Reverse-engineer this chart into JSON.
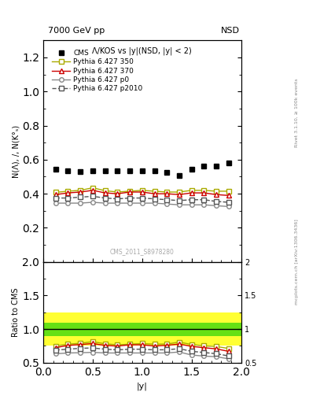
{
  "title_top": "7000 GeV pp",
  "title_top_right": "NSD",
  "plot_title": "Λ/KOS vs |y|(NSD, |y| < 2)",
  "xlabel": "|y|",
  "ylabel_main": "N(Λ), /, N(K°ₛ)",
  "ylabel_ratio": "Ratio to CMS",
  "watermark": "CMS_2011_S8978280",
  "right_label_top": "Rivet 3.1.10, ≥ 100k events",
  "right_label_bottom": "mcplots.cern.ch [arXiv:1306.3436]",
  "cms_x": [
    0.125,
    0.25,
    0.375,
    0.5,
    0.625,
    0.75,
    0.875,
    1.0,
    1.125,
    1.25,
    1.375,
    1.5,
    1.625,
    1.75,
    1.875
  ],
  "cms_y": [
    0.545,
    0.535,
    0.532,
    0.535,
    0.535,
    0.535,
    0.535,
    0.535,
    0.535,
    0.527,
    0.508,
    0.545,
    0.56,
    0.56,
    0.583
  ],
  "p350_x": [
    0.125,
    0.25,
    0.375,
    0.5,
    0.625,
    0.75,
    0.875,
    1.0,
    1.125,
    1.25,
    1.375,
    1.5,
    1.625,
    1.75,
    1.875
  ],
  "p350_y": [
    0.408,
    0.415,
    0.42,
    0.435,
    0.418,
    0.41,
    0.415,
    0.42,
    0.415,
    0.41,
    0.41,
    0.42,
    0.42,
    0.415,
    0.415
  ],
  "p370_x": [
    0.125,
    0.25,
    0.375,
    0.5,
    0.625,
    0.75,
    0.875,
    1.0,
    1.125,
    1.25,
    1.375,
    1.5,
    1.625,
    1.75,
    1.875
  ],
  "p370_y": [
    0.395,
    0.405,
    0.41,
    0.42,
    0.405,
    0.4,
    0.41,
    0.41,
    0.4,
    0.4,
    0.395,
    0.405,
    0.405,
    0.395,
    0.39
  ],
  "pp0_x": [
    0.125,
    0.25,
    0.375,
    0.5,
    0.625,
    0.75,
    0.875,
    1.0,
    1.125,
    1.25,
    1.375,
    1.5,
    1.625,
    1.75,
    1.875
  ],
  "pp0_y": [
    0.345,
    0.345,
    0.345,
    0.35,
    0.345,
    0.345,
    0.345,
    0.345,
    0.345,
    0.34,
    0.335,
    0.335,
    0.335,
    0.33,
    0.325
  ],
  "pp2010_x": [
    0.125,
    0.25,
    0.375,
    0.5,
    0.625,
    0.75,
    0.875,
    1.0,
    1.125,
    1.25,
    1.375,
    1.5,
    1.625,
    1.75,
    1.875
  ],
  "pp2010_y": [
    0.375,
    0.375,
    0.38,
    0.385,
    0.375,
    0.37,
    0.375,
    0.375,
    0.37,
    0.365,
    0.36,
    0.365,
    0.365,
    0.355,
    0.35
  ],
  "color_350": "#aaaa00",
  "color_370": "#cc0000",
  "color_p0": "#888888",
  "color_p2010": "#555555",
  "band_yellow_lo": 0.75,
  "band_yellow_hi": 1.25,
  "band_green_lo": 0.9,
  "band_green_hi": 1.1,
  "ylim_main": [
    0.0,
    1.3
  ],
  "ylim_ratio": [
    0.5,
    2.0
  ],
  "xlim": [
    0.0,
    2.0
  ]
}
